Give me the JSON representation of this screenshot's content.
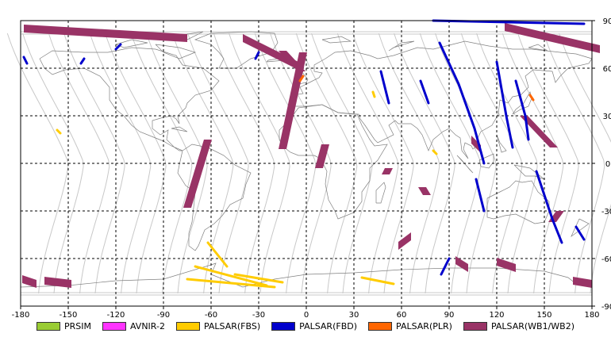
{
  "map": {
    "x_ticks": [
      "-180",
      "-150",
      "-120",
      "-90",
      "-60",
      "-30",
      "0",
      "30",
      "60",
      "90",
      "120",
      "150",
      "180"
    ],
    "y_ticks": [
      "90",
      "60",
      "30",
      "0",
      "-30",
      "-60",
      "-90"
    ],
    "x_range": [
      -180,
      180
    ],
    "y_range": [
      -90,
      90
    ],
    "grid": true,
    "land_color": "#808080",
    "orbit_color": "#c8c8c8"
  },
  "legend": [
    {
      "label": "PRSIM",
      "color": "#99cc33"
    },
    {
      "label": "AVNIR-2",
      "color": "#ff33ff"
    },
    {
      "label": "PALSAR(FBS)",
      "color": "#ffcc00"
    },
    {
      "label": "PALSAR(FBD)",
      "color": "#0000cc"
    },
    {
      "label": "PALSAR(PLR)",
      "color": "#ff6600"
    },
    {
      "label": "PALSAR(WB1/WB2)",
      "color": "#993366"
    }
  ],
  "swaths": {
    "wb": [
      {
        "lon": [
          -178,
          -75
        ],
        "lat": [
          85,
          79
        ]
      },
      {
        "lon": [
          -40,
          -2
        ],
        "lat": [
          79,
          60
        ]
      },
      {
        "lon": [
          -15,
          -3
        ],
        "lat": [
          71,
          58
        ]
      },
      {
        "lon": [
          -2,
          -15
        ],
        "lat": [
          70,
          9
        ]
      },
      {
        "lon": [
          -62,
          -75
        ],
        "lat": [
          15,
          -28
        ]
      },
      {
        "lon": [
          12,
          8
        ],
        "lat": [
          12,
          -3
        ]
      },
      {
        "lon": [
          73,
          76
        ],
        "lat": [
          -15,
          -20
        ]
      },
      {
        "lon": [
          52,
          50
        ],
        "lat": [
          -3,
          -7
        ]
      },
      {
        "lon": [
          104,
          110
        ],
        "lat": [
          15,
          9
        ]
      },
      {
        "lon": [
          125,
          185
        ],
        "lat": [
          86,
          72
        ]
      },
      {
        "lon": [
          137,
          156
        ],
        "lat": [
          30,
          10
        ]
      },
      {
        "lon": [
          160,
          155
        ],
        "lat": [
          -30,
          -37
        ]
      },
      {
        "lon": [
          66,
          58
        ],
        "lat": [
          -46,
          -52
        ]
      },
      {
        "lon": [
          94,
          102
        ],
        "lat": [
          -61,
          -66
        ]
      },
      {
        "lon": [
          120,
          132
        ],
        "lat": [
          -62,
          -66
        ]
      },
      {
        "lon": [
          -179,
          -170
        ],
        "lat": [
          -73,
          -76
        ]
      },
      {
        "lon": [
          -165,
          -148
        ],
        "lat": [
          -74,
          -76
        ]
      },
      {
        "lon": [
          168,
          180
        ],
        "lat": [
          -74,
          -76
        ]
      }
    ],
    "fbd": [
      {
        "points": [
          [
            84,
            76
          ],
          [
            96,
            50
          ],
          [
            106,
            22
          ],
          [
            112,
            0
          ]
        ]
      },
      {
        "points": [
          [
            120,
            64
          ],
          [
            126,
            30
          ],
          [
            130,
            10
          ]
        ]
      },
      {
        "points": [
          [
            132,
            52
          ],
          [
            138,
            30
          ],
          [
            140,
            15
          ]
        ]
      },
      {
        "points": [
          [
            145,
            -5
          ],
          [
            155,
            -35
          ],
          [
            161,
            -50
          ]
        ]
      },
      {
        "points": [
          [
            107,
            -10
          ],
          [
            112,
            -30
          ]
        ]
      },
      {
        "points": [
          [
            90,
            -60
          ],
          [
            85,
            -70
          ]
        ]
      },
      {
        "points": [
          [
            47,
            58
          ],
          [
            52,
            38
          ]
        ]
      },
      {
        "points": [
          [
            72,
            52
          ],
          [
            77,
            38
          ]
        ]
      },
      {
        "points": [
          [
            -117,
            75
          ],
          [
            -120,
            72
          ]
        ]
      },
      {
        "points": [
          [
            -178,
            67
          ],
          [
            -176,
            63
          ]
        ]
      },
      {
        "points": [
          [
            -140,
            66
          ],
          [
            -142,
            63
          ]
        ]
      },
      {
        "points": [
          [
            -30,
            70
          ],
          [
            -32,
            66
          ]
        ]
      },
      {
        "points": [
          [
            80,
            90
          ],
          [
            175,
            88
          ]
        ]
      },
      {
        "points": [
          [
            170,
            -40
          ],
          [
            175,
            -48
          ]
        ]
      }
    ],
    "fbs": [
      {
        "points": [
          [
            -62,
            -50
          ],
          [
            -50,
            -65
          ]
        ]
      },
      {
        "points": [
          [
            -70,
            -65
          ],
          [
            -25,
            -77
          ]
        ]
      },
      {
        "points": [
          [
            -75,
            -73
          ],
          [
            -20,
            -78
          ]
        ]
      },
      {
        "points": [
          [
            -45,
            -70
          ],
          [
            -15,
            -75
          ]
        ]
      },
      {
        "points": [
          [
            35,
            -72
          ],
          [
            55,
            -76
          ]
        ]
      },
      {
        "points": [
          [
            -157,
            21
          ],
          [
            -155,
            19
          ]
        ]
      },
      {
        "points": [
          [
            80,
            8
          ],
          [
            82,
            6
          ]
        ]
      },
      {
        "points": [
          [
            42,
            45
          ],
          [
            43,
            42
          ]
        ]
      }
    ],
    "plr": [
      {
        "points": [
          [
            -2,
            55
          ],
          [
            -4,
            52
          ]
        ]
      },
      {
        "points": [
          [
            141,
            43
          ],
          [
            143,
            40
          ]
        ]
      }
    ]
  }
}
